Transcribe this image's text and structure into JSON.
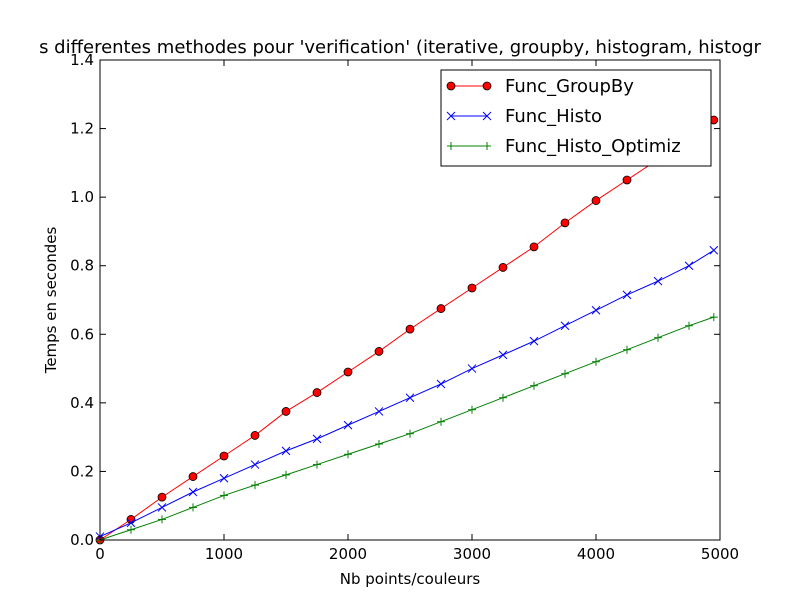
{
  "chart_data": {
    "type": "line",
    "title": "s differentes methodes pour 'verification' (iterative, groupby, histogram, histogr",
    "xlabel": "Nb points/couleurs",
    "ylabel": "Temps en secondes",
    "xlim": [
      0,
      5000
    ],
    "ylim": [
      0,
      1.4
    ],
    "xticks": [
      0,
      1000,
      2000,
      3000,
      4000,
      5000
    ],
    "xtick_labels": [
      "0",
      "1000",
      "2000",
      "3000",
      "4000",
      "5000"
    ],
    "yticks": [
      0.0,
      0.2,
      0.4,
      0.6,
      0.8,
      1.0,
      1.2,
      1.4
    ],
    "ytick_labels": [
      "0.0",
      "0.2",
      "0.4",
      "0.6",
      "0.8",
      "1.0",
      "1.2",
      "1.4"
    ],
    "grid": false,
    "legend_position": "top-right",
    "series": [
      {
        "name": "Func_GroupBy",
        "color": "#ff0000",
        "marker": "circle",
        "x": [
          0,
          250,
          500,
          750,
          1000,
          1250,
          1500,
          1750,
          2000,
          2250,
          2500,
          2750,
          3000,
          3250,
          3500,
          3750,
          4000,
          4250,
          4500,
          4750,
          4950
        ],
        "y": [
          0.0,
          0.06,
          0.125,
          0.185,
          0.245,
          0.305,
          0.375,
          0.43,
          0.49,
          0.55,
          0.615,
          0.675,
          0.735,
          0.795,
          0.855,
          0.925,
          0.99,
          1.05,
          1.11,
          1.18,
          1.225
        ]
      },
      {
        "name": "Func_Histo",
        "color": "#0000ff",
        "marker": "x",
        "x": [
          0,
          250,
          500,
          750,
          1000,
          1250,
          1500,
          1750,
          2000,
          2250,
          2500,
          2750,
          3000,
          3250,
          3500,
          3750,
          4000,
          4250,
          4500,
          4750,
          4950
        ],
        "y": [
          0.01,
          0.05,
          0.095,
          0.14,
          0.18,
          0.22,
          0.26,
          0.295,
          0.335,
          0.375,
          0.415,
          0.455,
          0.5,
          0.54,
          0.58,
          0.625,
          0.67,
          0.715,
          0.755,
          0.8,
          0.845
        ]
      },
      {
        "name": "Func_Histo_Optimiz",
        "color": "#008000",
        "marker": "plus",
        "x": [
          0,
          250,
          500,
          750,
          1000,
          1250,
          1500,
          1750,
          2000,
          2250,
          2500,
          2750,
          3000,
          3250,
          3500,
          3750,
          4000,
          4250,
          4500,
          4750,
          4950
        ],
        "y": [
          0.0,
          0.03,
          0.06,
          0.095,
          0.13,
          0.16,
          0.19,
          0.22,
          0.25,
          0.28,
          0.31,
          0.345,
          0.38,
          0.415,
          0.45,
          0.485,
          0.52,
          0.555,
          0.59,
          0.625,
          0.65
        ]
      }
    ]
  }
}
